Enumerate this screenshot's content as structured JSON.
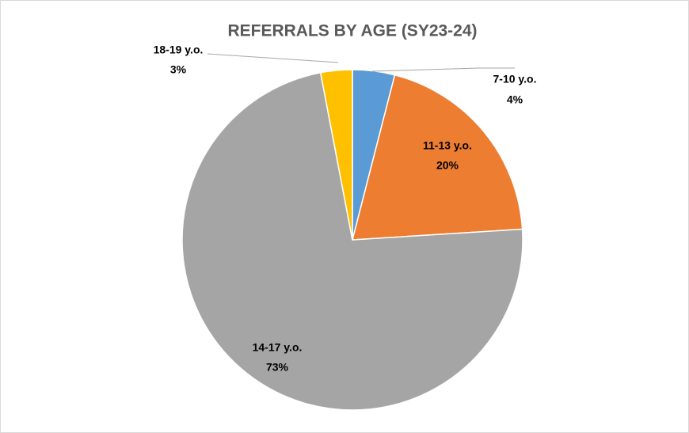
{
  "chart_data": {
    "type": "pie",
    "title": "REFERRALS BY AGE (SY23-24)",
    "categories": [
      "7-10 y.o.",
      "11-13 y.o.",
      "14-17 y.o.",
      "18-19 y.o."
    ],
    "values": [
      4,
      20,
      73,
      3
    ],
    "value_labels": [
      "4%",
      "20%",
      "73%",
      "3%"
    ],
    "colors": [
      "#5b9bd5",
      "#ed7d31",
      "#a5a5a5",
      "#ffc000"
    ]
  }
}
